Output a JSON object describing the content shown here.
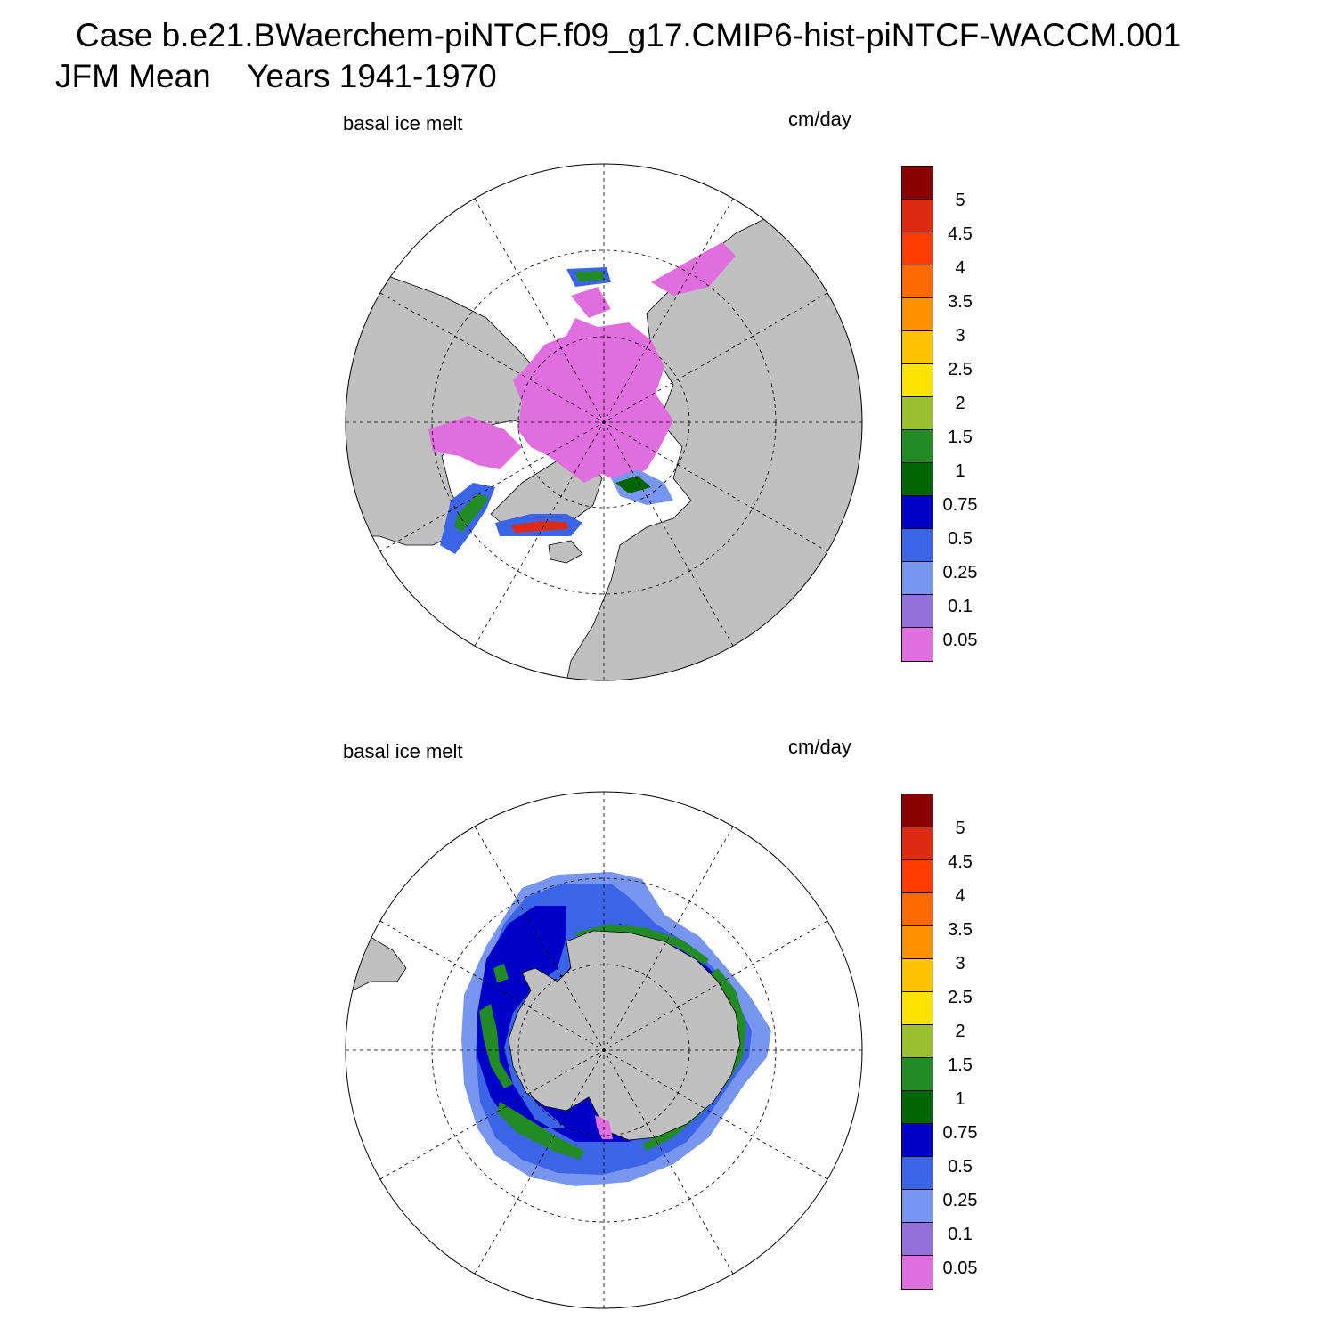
{
  "title": "Case b.e21.BWaerchem-piNTCF.f09_g17.CMIP6-hist-piNTCF-WACCM.001",
  "subtitle": "JFM Mean    Years 1941-1970",
  "panels": [
    {
      "name": "north",
      "variable": "basal ice melt",
      "units": "cm/day"
    },
    {
      "name": "south",
      "variable": "basal ice melt",
      "units": "cm/day"
    }
  ],
  "colorbar": {
    "labels": [
      "5",
      "4.5",
      "4",
      "3.5",
      "3",
      "2.5",
      "2",
      "1.5",
      "1",
      "0.75",
      "0.5",
      "0.25",
      "0.1",
      "0.05"
    ],
    "colors": [
      "#8b0000",
      "#dd2a12",
      "#ff3c00",
      "#ff6a00",
      "#ff9000",
      "#ffc200",
      "#ffe300",
      "#9bbf32",
      "#238b24",
      "#006400",
      "#0000c8",
      "#3c64e6",
      "#7896f0",
      "#9370db",
      "#e16ede"
    ]
  },
  "colors": {
    "land": "#c0c0c0",
    "ocean": "#ffffff",
    "grid": "#000000"
  }
}
